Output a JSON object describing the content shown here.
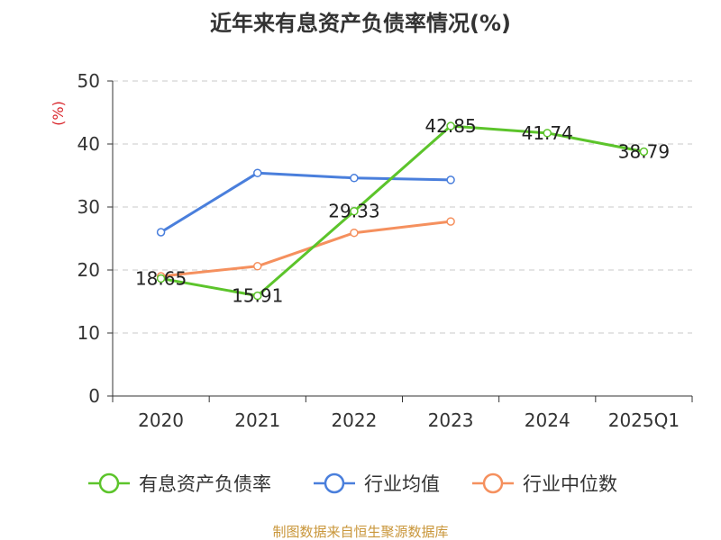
{
  "chart_data": {
    "type": "line",
    "title": "近年来有息资产负债率情况(%)",
    "ylabel": "(%)",
    "xlabel": "",
    "categories": [
      "2020",
      "2021",
      "2022",
      "2023",
      "2024",
      "2025Q1"
    ],
    "ylim": [
      0,
      50
    ],
    "yticks": [
      0,
      10,
      20,
      30,
      40,
      50
    ],
    "grid": true,
    "legend_position": "bottom",
    "series": [
      {
        "name": "有息资产负债率",
        "color": "#5cc42b",
        "values": [
          18.65,
          15.91,
          29.33,
          42.85,
          41.74,
          38.79
        ],
        "labels": [
          "18.65",
          "15.91",
          "29.33",
          "42.85",
          "41.74",
          "38.79"
        ]
      },
      {
        "name": "行业均值",
        "color": "#4a7fdc",
        "values": [
          26.0,
          35.4,
          34.6,
          34.3,
          null,
          null
        ]
      },
      {
        "name": "行业中位数",
        "color": "#f5905e",
        "values": [
          19.0,
          20.6,
          25.9,
          27.7,
          null,
          null
        ]
      }
    ],
    "source": "制图数据来自恒生聚源数据库"
  }
}
